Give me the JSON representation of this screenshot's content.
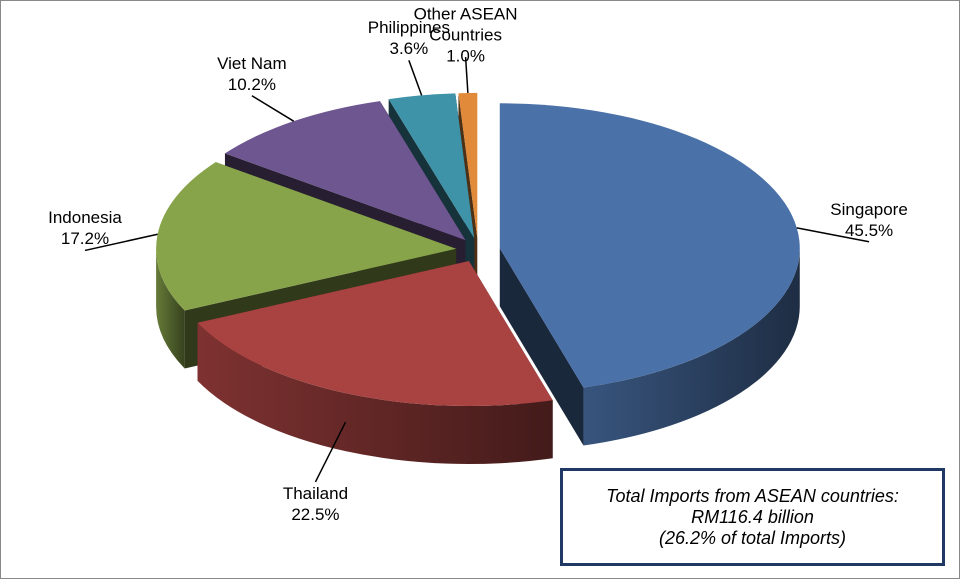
{
  "chart_data": {
    "type": "pie",
    "categories": [
      "Singapore",
      "Thailand",
      "Indonesia",
      "Viet Nam",
      "Philippines",
      "Other ASEAN Countries"
    ],
    "values": [
      45.5,
      22.5,
      17.2,
      10.2,
      3.6,
      1.0
    ],
    "value_labels": [
      "45.5%",
      "22.5%",
      "17.2%",
      "10.2%",
      "3.6%",
      "1.0%"
    ],
    "colors": [
      "#4A71A8",
      "#A84341",
      "#88A44A",
      "#6E5690",
      "#3E93A8",
      "#E08A3A"
    ],
    "annotation": [
      "Total Imports from ASEAN countries:",
      "RM116.4 billion",
      "(26.2% of total Imports)"
    ]
  }
}
